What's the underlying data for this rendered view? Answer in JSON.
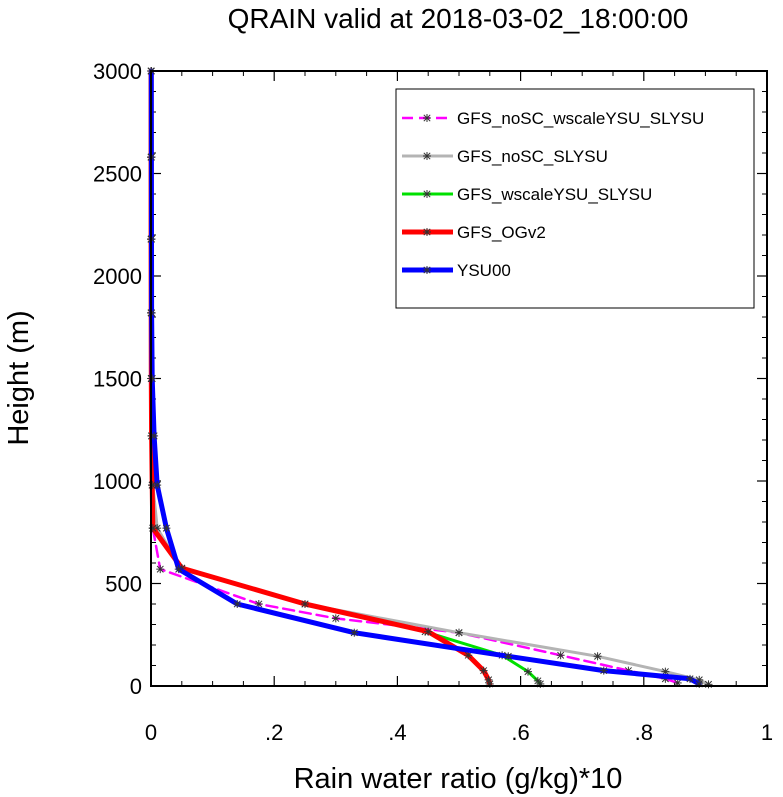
{
  "chart_data": {
    "type": "line",
    "title": "QRAIN valid at 2018-03-02_18:00:00",
    "xlabel": "Rain water ratio (g/kg)*10",
    "ylabel": "Height (m)",
    "xlim": [
      0,
      1
    ],
    "ylim": [
      0,
      3000
    ],
    "x_ticks": [
      0,
      0.2,
      0.4,
      0.6,
      0.8,
      1
    ],
    "x_tick_labels": [
      "0",
      ".2",
      ".4",
      ".6",
      ".8",
      "1"
    ],
    "y_ticks": [
      0,
      500,
      1000,
      1500,
      2000,
      2500,
      3000
    ],
    "y_tick_labels": [
      "0",
      "500",
      "1000",
      "1500",
      "2000",
      "2500",
      "3000"
    ],
    "grid": false,
    "legend_position": "top-right",
    "series": [
      {
        "name": "GFS_noSC_wscaleYSU_SLYSU",
        "color": "#ff00ff",
        "dashed": true,
        "line_weight": "thin",
        "points": [
          [
            0.855,
            15
          ],
          [
            0.835,
            35
          ],
          [
            0.775,
            75
          ],
          [
            0.665,
            150
          ],
          [
            0.5,
            260
          ],
          [
            0.3,
            330
          ],
          [
            0.175,
            400
          ],
          [
            0.015,
            570
          ],
          [
            0.003,
            770
          ],
          [
            0.002,
            980
          ],
          [
            0.001,
            1220
          ],
          [
            0.0005,
            1500
          ],
          [
            0.0003,
            1820
          ],
          [
            0.0002,
            2180
          ],
          [
            0.0002,
            2580
          ],
          [
            0.0002,
            3000
          ]
        ]
      },
      {
        "name": "GFS_noSC_SLYSU",
        "color": "#b4b4b4",
        "dashed": false,
        "line_weight": "medium",
        "points": [
          [
            0.905,
            8
          ],
          [
            0.89,
            30
          ],
          [
            0.835,
            70
          ],
          [
            0.725,
            145
          ],
          [
            0.5,
            260
          ],
          [
            0.25,
            400
          ],
          [
            0.05,
            570
          ],
          [
            0.01,
            770
          ],
          [
            0.003,
            980
          ],
          [
            0.0015,
            1220
          ],
          [
            0.0008,
            1500
          ],
          [
            0.0005,
            1820
          ],
          [
            0.0004,
            2180
          ],
          [
            0.0004,
            2580
          ],
          [
            0.0004,
            3000
          ]
        ]
      },
      {
        "name": "GFS_wscaleYSU_SLYSU",
        "color": "#00e000",
        "dashed": false,
        "line_weight": "medium",
        "points": [
          [
            0.632,
            10
          ],
          [
            0.628,
            25
          ],
          [
            0.612,
            70
          ],
          [
            0.57,
            150
          ],
          [
            0.445,
            265
          ],
          [
            0.25,
            400
          ],
          [
            0.05,
            575
          ],
          [
            0.003,
            770
          ],
          [
            0.002,
            980
          ],
          [
            0.001,
            1220
          ],
          [
            0.0005,
            1500
          ],
          [
            0.0003,
            1820
          ],
          [
            0.0002,
            2180
          ],
          [
            0.0002,
            2580
          ],
          [
            0.0002,
            3000
          ]
        ]
      },
      {
        "name": "GFS_OGv2",
        "color": "#ff0000",
        "dashed": false,
        "line_weight": "thick",
        "points": [
          [
            0.55,
            10
          ],
          [
            0.548,
            30
          ],
          [
            0.54,
            75
          ],
          [
            0.515,
            150
          ],
          [
            0.45,
            265
          ],
          [
            0.25,
            400
          ],
          [
            0.05,
            575
          ],
          [
            0.003,
            770
          ],
          [
            0.002,
            980
          ],
          [
            0.001,
            1220
          ],
          [
            0.0005,
            1500
          ],
          [
            0.0003,
            1820
          ],
          [
            0.0002,
            2180
          ],
          [
            0.0002,
            2580
          ],
          [
            0.0002,
            3000
          ]
        ]
      },
      {
        "name": "YSU00",
        "color": "#0000ff",
        "dashed": false,
        "line_weight": "thick",
        "points": [
          [
            0.89,
            10
          ],
          [
            0.875,
            35
          ],
          [
            0.735,
            75
          ],
          [
            0.58,
            145
          ],
          [
            0.33,
            260
          ],
          [
            0.14,
            400
          ],
          [
            0.045,
            570
          ],
          [
            0.025,
            770
          ],
          [
            0.01,
            980
          ],
          [
            0.005,
            1220
          ],
          [
            0.002,
            1500
          ],
          [
            0.001,
            1820
          ],
          [
            0.0008,
            2180
          ],
          [
            0.0006,
            2580
          ],
          [
            0.0005,
            3000
          ]
        ]
      }
    ]
  }
}
